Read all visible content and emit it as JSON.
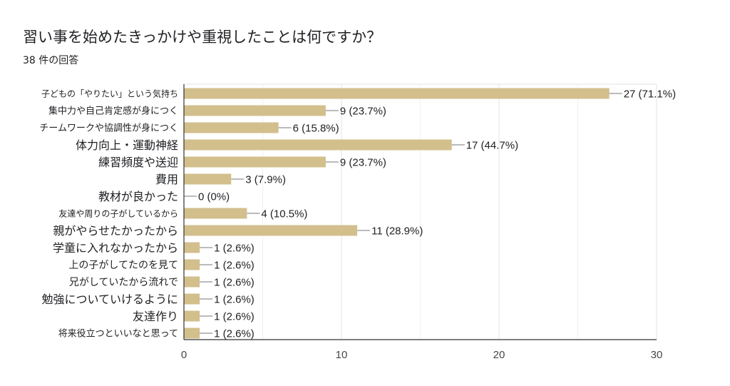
{
  "header": {
    "title": "習い事を始めたきっかけや重視したことは何ですか？",
    "subtitle": "38 件の回答"
  },
  "colors": {
    "bar": "#d2bf8c",
    "grid": "#e3e3e3",
    "axis": "#333333",
    "leader": "#777777"
  },
  "chart_data": {
    "type": "bar",
    "orientation": "horizontal",
    "title": "習い事を始めたきっかけや重視したことは何ですか？",
    "subtitle": "38 件の回答",
    "xlim": [
      0,
      30
    ],
    "x_ticks": [
      0,
      10,
      20,
      30
    ],
    "grid": true,
    "categories": [
      "子どもの「やりたい」という気持ち",
      "集中力や自己肯定感が身につく",
      "チームワークや協調性が身につく",
      "体力向上・運動神経",
      "練習頻度や送迎",
      "費用",
      "教材が良かった",
      "友達や周りの子がしているから",
      "親がやらせたかったから",
      "学童に入れなかったから",
      "上の子がしてたのを見て",
      "兄がしていたから流れで",
      "勉強についていけるように",
      "友達作り",
      "将来役立つといいなと思って"
    ],
    "values": [
      27,
      9,
      6,
      17,
      9,
      3,
      0,
      4,
      11,
      1,
      1,
      1,
      1,
      1,
      1
    ],
    "data_labels": [
      "27 (71.1%)",
      "9 (23.7%)",
      "6 (15.8%)",
      "17 (44.7%)",
      "9 (23.7%)",
      "3 (7.9%)",
      "0 (0%)",
      "4 (10.5%)",
      "11 (28.9%)",
      "1 (2.6%)",
      "1 (2.6%)",
      "1 (2.6%)",
      "1 (2.6%)",
      "1 (2.6%)",
      "1 (2.6%)"
    ]
  }
}
